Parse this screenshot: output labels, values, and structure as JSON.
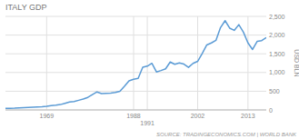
{
  "chart_data": {
    "type": "line",
    "title": "ITALY GDP",
    "ylabel": "USD BLN",
    "annotations": [
      "SOURCE: TRADINGECONOMICS.COM | WORLD BANK"
    ],
    "color": "#5b9bd5",
    "x": [
      1960,
      1961,
      1962,
      1963,
      1964,
      1965,
      1966,
      1967,
      1968,
      1969,
      1970,
      1971,
      1972,
      1973,
      1974,
      1975,
      1976,
      1977,
      1978,
      1979,
      1980,
      1981,
      1982,
      1983,
      1984,
      1985,
      1986,
      1987,
      1988,
      1989,
      1990,
      1991,
      1992,
      1993,
      1994,
      1995,
      1996,
      1997,
      1998,
      1999,
      2000,
      2001,
      2002,
      2003,
      2004,
      2005,
      2006,
      2007,
      2008,
      2009,
      2010,
      2011,
      2012,
      2013,
      2014,
      2015,
      2016,
      2017
    ],
    "values": [
      40,
      44,
      49,
      57,
      60,
      64,
      70,
      77,
      86,
      98,
      114,
      126,
      143,
      178,
      213,
      225,
      258,
      290,
      335,
      408,
      480,
      437,
      441,
      447,
      465,
      499,
      630,
      775,
      820,
      845,
      1140,
      1170,
      1245,
      1015,
      1053,
      1099,
      1280,
      1220,
      1258,
      1225,
      1137,
      1243,
      1298,
      1510,
      1737,
      1790,
      1858,
      2200,
      2385,
      2185,
      2125,
      2278,
      2078,
      1790,
      1615,
      1830,
      1852,
      1935
    ],
    "xlim": [
      1960,
      2017
    ],
    "xticks": [
      1969,
      1988,
      1991,
      2002,
      2013
    ],
    "ylim": [
      0,
      2500
    ],
    "yticks": [
      0,
      500,
      {
        "value": 1000,
        "label": "1,000"
      },
      {
        "value": 1500,
        "label": "1,500"
      },
      {
        "value": 2000,
        "label": "2,000"
      },
      {
        "value": 2500,
        "label": "2,500"
      }
    ],
    "grid": true
  }
}
